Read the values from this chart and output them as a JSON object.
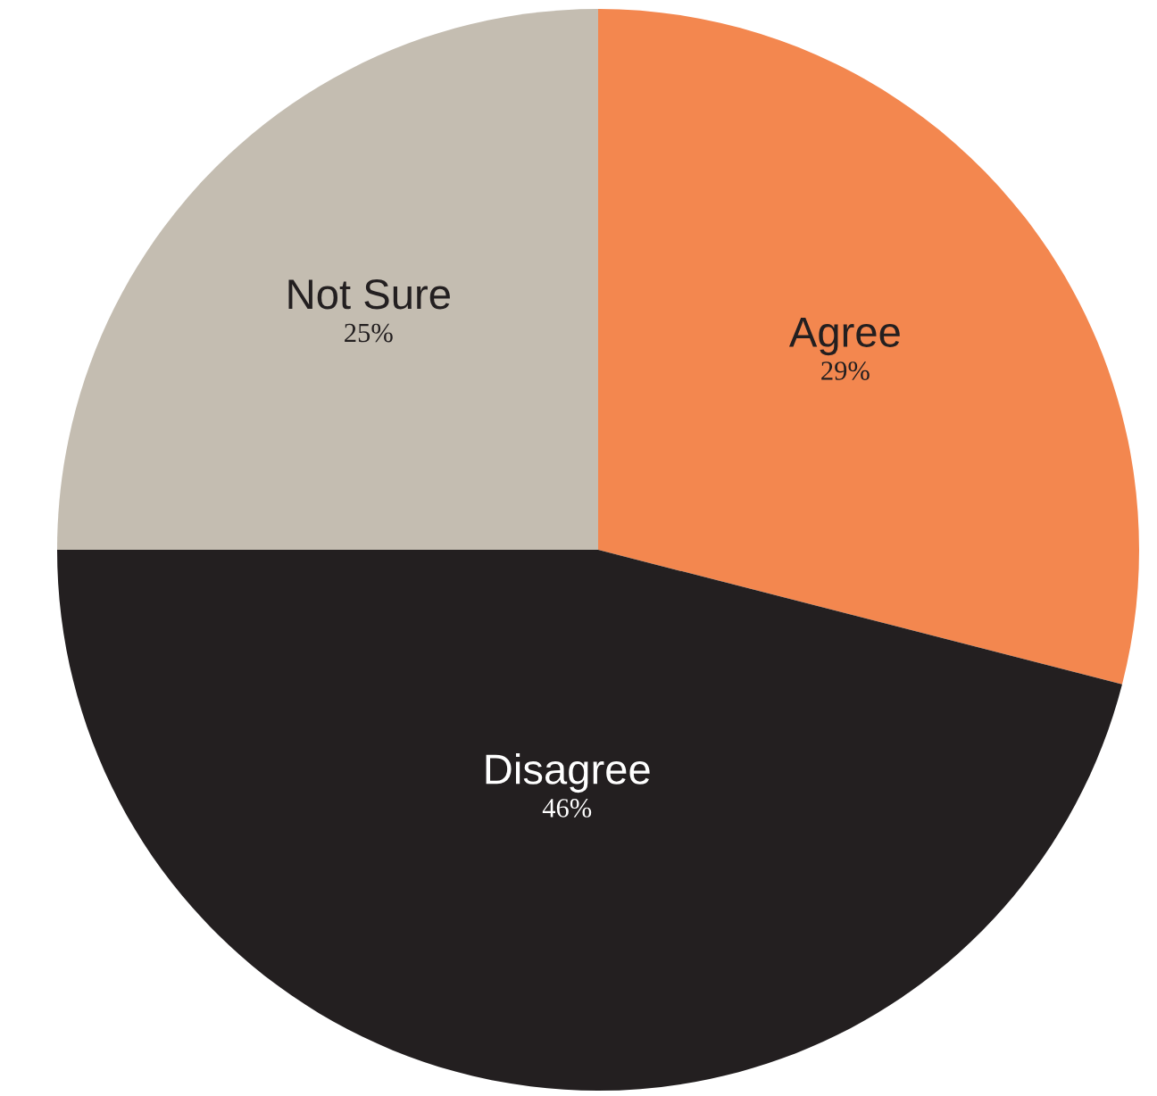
{
  "chart_data": {
    "type": "pie",
    "categories": [
      "Agree",
      "Disagree",
      "Not Sure"
    ],
    "values": [
      29,
      46,
      25
    ],
    "colors": [
      "#f3874f",
      "#231f20",
      "#c4bdb1"
    ],
    "value_labels": [
      "29%",
      "46%",
      "25%"
    ],
    "legend": false
  }
}
